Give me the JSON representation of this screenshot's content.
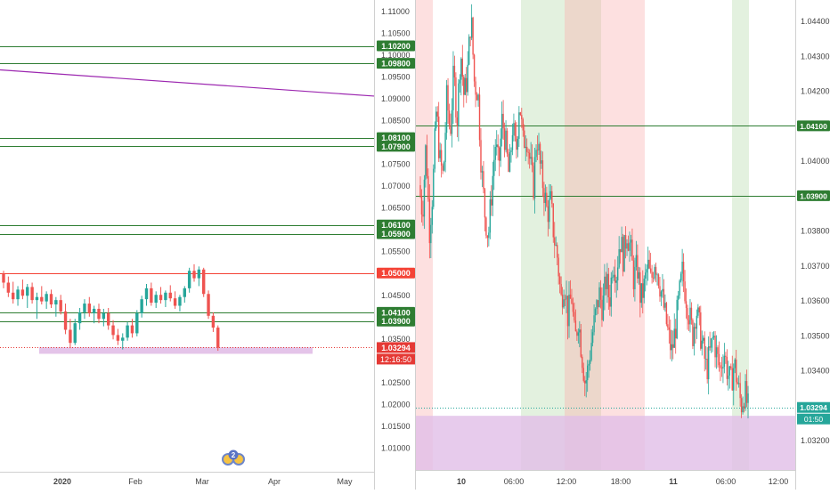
{
  "colors": {
    "up": "#26a69a",
    "down": "#ef5350",
    "green_level": "#2e7d32",
    "red_level": "#f44336",
    "trend": "#9c27b0",
    "zone": "#e1bee7",
    "price_tag": "#e53935",
    "live_tag": "#26a69a",
    "axis_text": "#444444",
    "divider": "#d0d0d0"
  },
  "chart_data": [
    {
      "type": "candlestick",
      "panel": "daily",
      "y_axis": {
        "ylim": [
          1.0045,
          1.1125
        ],
        "tick_labels": [
          "1.11000",
          "1.10500",
          "1.10000",
          "1.09500",
          "1.09000",
          "1.08500",
          "1.08000",
          "1.07500",
          "1.07000",
          "1.06500",
          "1.06000",
          "1.05500",
          "1.05000",
          "1.04500",
          "1.04000",
          "1.03500",
          "1.03000",
          "1.02500",
          "1.02000",
          "1.01500",
          "1.01000"
        ],
        "tick_values": [
          1.11,
          1.105,
          1.1,
          1.095,
          1.09,
          1.085,
          1.08,
          1.075,
          1.07,
          1.065,
          1.06,
          1.055,
          1.05,
          1.045,
          1.04,
          1.035,
          1.03,
          1.025,
          1.02,
          1.015,
          1.01
        ]
      },
      "x_axis": {
        "tick_labels": [
          "2020",
          "Feb",
          "Mar",
          "Apr",
          "May"
        ]
      },
      "levels": [
        {
          "price": 1.102,
          "label": "1.10200",
          "color": "green"
        },
        {
          "price": 1.098,
          "label": "1.09800",
          "color": "green"
        },
        {
          "price": 1.081,
          "label": "1.08100",
          "color": "green"
        },
        {
          "price": 1.079,
          "label": "1.07900",
          "color": "green"
        },
        {
          "price": 1.061,
          "label": "1.06100",
          "color": "green"
        },
        {
          "price": 1.059,
          "label": "1.05900",
          "color": "green"
        },
        {
          "price": 1.05,
          "label": "1.05000",
          "color": "red"
        },
        {
          "price": 1.041,
          "label": "1.04100",
          "color": "green"
        },
        {
          "price": 1.039,
          "label": "1.03900",
          "color": "green"
        }
      ],
      "trendline": {
        "from_price": 1.0965,
        "to_price": 1.0905
      },
      "support_zone": {
        "low": 1.0315,
        "high": 1.033
      },
      "last_price": {
        "label": "1.03294",
        "value": 1.03294
      },
      "countdown": "12:16:50",
      "event_badge": "2",
      "candles": [
        {
          "o": 1.0498,
          "h": 1.0505,
          "l": 1.0465,
          "c": 1.0478
        },
        {
          "o": 1.0478,
          "h": 1.0492,
          "l": 1.0445,
          "c": 1.0455
        },
        {
          "o": 1.0455,
          "h": 1.048,
          "l": 1.043,
          "c": 1.044
        },
        {
          "o": 1.044,
          "h": 1.047,
          "l": 1.0425,
          "c": 1.0462
        },
        {
          "o": 1.0462,
          "h": 1.0485,
          "l": 1.044,
          "c": 1.0448
        },
        {
          "o": 1.0448,
          "h": 1.0475,
          "l": 1.042,
          "c": 1.0468
        },
        {
          "o": 1.0468,
          "h": 1.0478,
          "l": 1.043,
          "c": 1.0438
        },
        {
          "o": 1.0438,
          "h": 1.0455,
          "l": 1.0395,
          "c": 1.0445
        },
        {
          "o": 1.0445,
          "h": 1.047,
          "l": 1.0428,
          "c": 1.0435
        },
        {
          "o": 1.0435,
          "h": 1.0458,
          "l": 1.0418,
          "c": 1.0452
        },
        {
          "o": 1.0452,
          "h": 1.0462,
          "l": 1.042,
          "c": 1.0428
        },
        {
          "o": 1.0428,
          "h": 1.0445,
          "l": 1.04,
          "c": 1.0438
        },
        {
          "o": 1.0438,
          "h": 1.045,
          "l": 1.0405,
          "c": 1.0412
        },
        {
          "o": 1.0412,
          "h": 1.043,
          "l": 1.036,
          "c": 1.037
        },
        {
          "o": 1.037,
          "h": 1.0395,
          "l": 1.0328,
          "c": 1.034
        },
        {
          "o": 1.034,
          "h": 1.0395,
          "l": 1.0335,
          "c": 1.0385
        },
        {
          "o": 1.0385,
          "h": 1.042,
          "l": 1.037,
          "c": 1.041
        },
        {
          "o": 1.041,
          "h": 1.044,
          "l": 1.0395,
          "c": 1.043
        },
        {
          "o": 1.043,
          "h": 1.0445,
          "l": 1.04,
          "c": 1.0408
        },
        {
          "o": 1.0408,
          "h": 1.0425,
          "l": 1.0385,
          "c": 1.0418
        },
        {
          "o": 1.0418,
          "h": 1.043,
          "l": 1.0385,
          "c": 1.0395
        },
        {
          "o": 1.0395,
          "h": 1.0418,
          "l": 1.0378,
          "c": 1.0408
        },
        {
          "o": 1.0408,
          "h": 1.042,
          "l": 1.037,
          "c": 1.038
        },
        {
          "o": 1.038,
          "h": 1.0392,
          "l": 1.0348,
          "c": 1.0358
        },
        {
          "o": 1.0358,
          "h": 1.0372,
          "l": 1.0335,
          "c": 1.0345
        },
        {
          "o": 1.0345,
          "h": 1.0362,
          "l": 1.0325,
          "c": 1.0352
        },
        {
          "o": 1.0352,
          "h": 1.0388,
          "l": 1.0345,
          "c": 1.038
        },
        {
          "o": 1.038,
          "h": 1.0395,
          "l": 1.0352,
          "c": 1.0362
        },
        {
          "o": 1.0362,
          "h": 1.0415,
          "l": 1.0355,
          "c": 1.0408
        },
        {
          "o": 1.0408,
          "h": 1.0448,
          "l": 1.0398,
          "c": 1.044
        },
        {
          "o": 1.044,
          "h": 1.0475,
          "l": 1.0425,
          "c": 1.0465
        },
        {
          "o": 1.0465,
          "h": 1.0478,
          "l": 1.0425,
          "c": 1.0432
        },
        {
          "o": 1.0432,
          "h": 1.0458,
          "l": 1.042,
          "c": 1.045
        },
        {
          "o": 1.045,
          "h": 1.0468,
          "l": 1.043,
          "c": 1.0438
        },
        {
          "o": 1.0438,
          "h": 1.046,
          "l": 1.0422,
          "c": 1.0455
        },
        {
          "o": 1.0455,
          "h": 1.0472,
          "l": 1.0435,
          "c": 1.0442
        },
        {
          "o": 1.0442,
          "h": 1.0458,
          "l": 1.0418,
          "c": 1.0425
        },
        {
          "o": 1.0425,
          "h": 1.045,
          "l": 1.0412,
          "c": 1.0445
        },
        {
          "o": 1.0445,
          "h": 1.047,
          "l": 1.0432,
          "c": 1.0465
        },
        {
          "o": 1.0465,
          "h": 1.0512,
          "l": 1.0455,
          "c": 1.0505
        },
        {
          "o": 1.0505,
          "h": 1.052,
          "l": 1.048,
          "c": 1.0488
        },
        {
          "o": 1.0488,
          "h": 1.0515,
          "l": 1.047,
          "c": 1.0508
        },
        {
          "o": 1.0508,
          "h": 1.0512,
          "l": 1.0445,
          "c": 1.0452
        },
        {
          "o": 1.0452,
          "h": 1.046,
          "l": 1.0395,
          "c": 1.0402
        },
        {
          "o": 1.0402,
          "h": 1.041,
          "l": 1.0365,
          "c": 1.0375
        },
        {
          "o": 1.0375,
          "h": 1.038,
          "l": 1.0322,
          "c": 1.0329
        }
      ]
    },
    {
      "type": "candlestick",
      "panel": "intraday",
      "y_axis": {
        "ylim": [
          1.03115,
          1.0446
        ],
        "tick_labels": [
          "1.04400",
          "1.04300",
          "1.04200",
          "1.04100",
          "1.04000",
          "1.03900",
          "1.03800",
          "1.03700",
          "1.03600",
          "1.03500",
          "1.03400",
          "1.03300",
          "1.03200"
        ],
        "tick_values": [
          1.044,
          1.043,
          1.042,
          1.041,
          1.04,
          1.039,
          1.038,
          1.037,
          1.036,
          1.035,
          1.034,
          1.033,
          1.032
        ]
      },
      "x_axis": {
        "tick_labels": [
          "10",
          "06:00",
          "12:00",
          "18:00",
          "11",
          "06:00",
          "12:00"
        ]
      },
      "levels": [
        {
          "price": 1.041,
          "label": "1.04100",
          "color": "green"
        },
        {
          "price": 1.039,
          "label": "1.03900",
          "color": "green"
        }
      ],
      "session_bands": [
        "red",
        "green",
        "brown",
        "red",
        "green"
      ],
      "support_zone": {
        "low": 1.0311,
        "high": 1.0327
      },
      "last_price": {
        "label": "1.03294",
        "value": 1.03294
      },
      "countdown": "01:50",
      "series_path": [
        1.0393,
        1.0385,
        1.0405,
        1.038,
        1.0392,
        1.0415,
        1.04,
        1.0395,
        1.0418,
        1.0408,
        1.0425,
        1.0412,
        1.0432,
        1.0418,
        1.0425,
        1.0442,
        1.0422,
        1.042,
        1.0398,
        1.0385,
        1.0378,
        1.0392,
        1.0405,
        1.0398,
        1.0412,
        1.0405,
        1.0395,
        1.041,
        1.0402,
        1.0418,
        1.0405,
        1.0408,
        1.04,
        1.0392,
        1.0408,
        1.0398,
        1.0392,
        1.0385,
        1.0388,
        1.0378,
        1.0372,
        1.036,
        1.0366,
        1.0355,
        1.0362,
        1.0348,
        1.0355,
        1.0345,
        1.0336,
        1.0342,
        1.035,
        1.0356,
        1.0362,
        1.0358,
        1.0366,
        1.036,
        1.0372,
        1.0368,
        1.0378,
        1.0372,
        1.038,
        1.0375,
        1.0366,
        1.037,
        1.036,
        1.0364,
        1.037,
        1.0365,
        1.0372,
        1.0368,
        1.0362,
        1.0356,
        1.035,
        1.0345,
        1.0352,
        1.036,
        1.0368,
        1.0362,
        1.0356,
        1.035,
        1.0358,
        1.0352,
        1.0346,
        1.034,
        1.0345,
        1.035,
        1.0344,
        1.034,
        1.0346,
        1.034,
        1.0336,
        1.0342,
        1.0336,
        1.033,
        1.0334,
        1.0329
      ]
    }
  ]
}
